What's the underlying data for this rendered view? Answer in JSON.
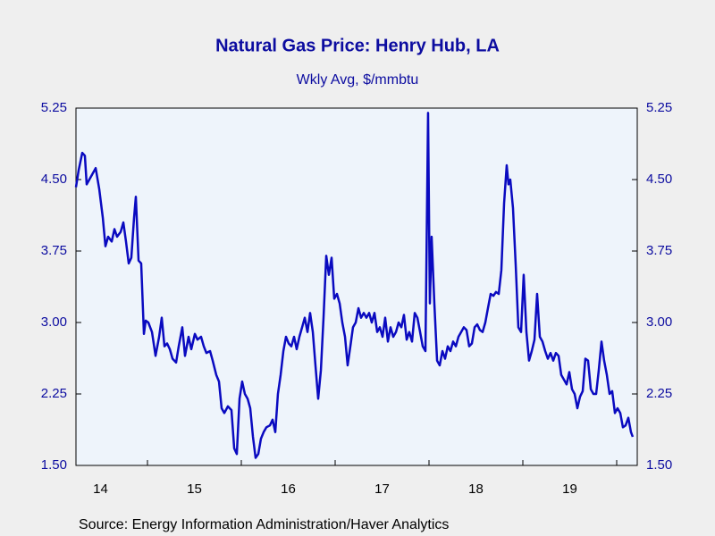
{
  "chart_data": {
    "type": "line",
    "title": "Natural Gas Price: Henry Hub, LA",
    "subtitle": "Wkly Avg, $/mmbtu",
    "source": "Source:  Energy Information Administration/Haver Analytics",
    "color": "#0a0ac0",
    "ylim": [
      1.5,
      5.25
    ],
    "yticks": [
      {
        "value": 1.5,
        "label": "1.50"
      },
      2.25,
      {
        "value": 3.0,
        "label": "3.00"
      },
      3.75,
      {
        "value": 4.5,
        "label": "4.50"
      },
      5.25
    ],
    "xlim": [
      2014.238,
      2020.219
    ],
    "xticks": [
      {
        "value": 2014.5,
        "label": "14"
      },
      {
        "value": 2015.5,
        "label": "15"
      },
      {
        "value": 2016.5,
        "label": "16"
      },
      {
        "value": 2017.5,
        "label": "17"
      },
      {
        "value": 2018.5,
        "label": "18"
      },
      {
        "value": 2019.5,
        "label": "19"
      }
    ],
    "xtick_marks": [
      2015,
      2016,
      2017,
      2018,
      2019,
      2020
    ],
    "x": [
      2014.238,
      2014.267,
      2014.305,
      2014.333,
      2014.352,
      2014.409,
      2014.448,
      2014.486,
      2014.524,
      2014.552,
      2014.581,
      2014.619,
      2014.648,
      2014.676,
      2014.714,
      2014.743,
      2014.771,
      2014.8,
      2014.828,
      2014.857,
      2014.876,
      2014.905,
      2014.933,
      2014.962,
      2014.981,
      2015.009,
      2015.048,
      2015.086,
      2015.124,
      2015.152,
      2015.181,
      2015.209,
      2015.238,
      2015.267,
      2015.305,
      2015.333,
      2015.371,
      2015.4,
      2015.438,
      2015.467,
      2015.505,
      2015.533,
      2015.571,
      2015.6,
      2015.628,
      2015.667,
      2015.695,
      2015.733,
      2015.762,
      2015.79,
      2015.819,
      2015.857,
      2015.895,
      2015.924,
      2015.952,
      2015.981,
      2016.009,
      2016.038,
      2016.067,
      2016.095,
      2016.124,
      2016.152,
      2016.181,
      2016.209,
      2016.238,
      2016.267,
      2016.305,
      2016.333,
      2016.362,
      2016.39,
      2016.419,
      2016.448,
      2016.476,
      2016.505,
      2016.533,
      2016.562,
      2016.59,
      2016.619,
      2016.648,
      2016.676,
      2016.705,
      2016.733,
      2016.762,
      2016.79,
      2016.819,
      2016.848,
      2016.876,
      2016.905,
      2016.933,
      2016.962,
      2016.99,
      2017.019,
      2017.048,
      2017.076,
      2017.105,
      2017.133,
      2017.162,
      2017.19,
      2017.219,
      2017.248,
      2017.276,
      2017.305,
      2017.333,
      2017.362,
      2017.39,
      2017.419,
      2017.448,
      2017.476,
      2017.505,
      2017.533,
      2017.562,
      2017.59,
      2017.619,
      2017.648,
      2017.676,
      2017.705,
      2017.733,
      2017.762,
      2017.79,
      2017.819,
      2017.848,
      2017.876,
      2017.905,
      2017.933,
      2017.962,
      2017.99,
      2018.009,
      2018.028,
      2018.057,
      2018.086,
      2018.114,
      2018.143,
      2018.171,
      2018.2,
      2018.228,
      2018.257,
      2018.286,
      2018.314,
      2018.343,
      2018.371,
      2018.4,
      2018.428,
      2018.457,
      2018.486,
      2018.514,
      2018.543,
      2018.571,
      2018.6,
      2018.628,
      2018.657,
      2018.686,
      2018.714,
      2018.743,
      2018.771,
      2018.8,
      2018.828,
      2018.847,
      2018.866,
      2018.895,
      2018.924,
      2018.952,
      2018.981,
      2019.009,
      2019.038,
      2019.066,
      2019.095,
      2019.124,
      2019.152,
      2019.181,
      2019.209,
      2019.238,
      2019.266,
      2019.295,
      2019.324,
      2019.352,
      2019.381,
      2019.409,
      2019.438,
      2019.466,
      2019.495,
      2019.524,
      2019.552,
      2019.581,
      2019.609,
      2019.638,
      2019.666,
      2019.695,
      2019.724,
      2019.752,
      2019.781,
      2019.809,
      2019.838,
      2019.866,
      2019.895,
      2019.924,
      2019.952,
      2019.981,
      2020.009,
      2020.038,
      2020.066,
      2020.095,
      2020.124,
      2020.152,
      2020.171
    ],
    "values": [
      4.42,
      4.6,
      4.78,
      4.75,
      4.45,
      4.55,
      4.62,
      4.4,
      4.1,
      3.8,
      3.9,
      3.85,
      3.98,
      3.9,
      3.95,
      4.05,
      3.85,
      3.62,
      3.68,
      4.1,
      4.32,
      3.65,
      3.62,
      2.88,
      3.02,
      3.0,
      2.9,
      2.65,
      2.85,
      3.05,
      2.75,
      2.78,
      2.72,
      2.62,
      2.58,
      2.75,
      2.95,
      2.65,
      2.85,
      2.72,
      2.88,
      2.82,
      2.85,
      2.75,
      2.68,
      2.7,
      2.6,
      2.45,
      2.38,
      2.1,
      2.05,
      2.12,
      2.08,
      1.68,
      1.62,
      2.2,
      2.38,
      2.25,
      2.2,
      2.1,
      1.8,
      1.58,
      1.62,
      1.78,
      1.85,
      1.9,
      1.92,
      1.98,
      1.85,
      2.25,
      2.45,
      2.7,
      2.85,
      2.78,
      2.75,
      2.85,
      2.72,
      2.85,
      2.95,
      3.05,
      2.9,
      3.1,
      2.9,
      2.55,
      2.2,
      2.5,
      3.05,
      3.7,
      3.5,
      3.68,
      3.25,
      3.3,
      3.2,
      3.0,
      2.85,
      2.55,
      2.75,
      2.95,
      3.0,
      3.15,
      3.05,
      3.1,
      3.05,
      3.1,
      3.0,
      3.1,
      2.9,
      2.95,
      2.85,
      3.05,
      2.8,
      2.95,
      2.85,
      2.9,
      3.0,
      2.95,
      3.08,
      2.82,
      2.9,
      2.8,
      3.1,
      3.05,
      2.9,
      2.75,
      2.7,
      5.2,
      3.2,
      3.9,
      3.2,
      2.6,
      2.55,
      2.7,
      2.62,
      2.75,
      2.7,
      2.8,
      2.75,
      2.85,
      2.9,
      2.95,
      2.92,
      2.75,
      2.78,
      2.95,
      2.98,
      2.92,
      2.9,
      3.0,
      3.15,
      3.3,
      3.28,
      3.32,
      3.3,
      3.55,
      4.25,
      4.65,
      4.45,
      4.5,
      4.2,
      3.6,
      2.95,
      2.9,
      3.5,
      2.9,
      2.6,
      2.7,
      2.82,
      3.3,
      2.85,
      2.8,
      2.7,
      2.62,
      2.68,
      2.6,
      2.68,
      2.65,
      2.45,
      2.4,
      2.35,
      2.48,
      2.3,
      2.25,
      2.1,
      2.22,
      2.28,
      2.62,
      2.6,
      2.3,
      2.25,
      2.25,
      2.5,
      2.8,
      2.6,
      2.45,
      2.25,
      2.28,
      2.05,
      2.1,
      2.05,
      1.9,
      1.92,
      2.0,
      1.85,
      1.8
    ]
  }
}
